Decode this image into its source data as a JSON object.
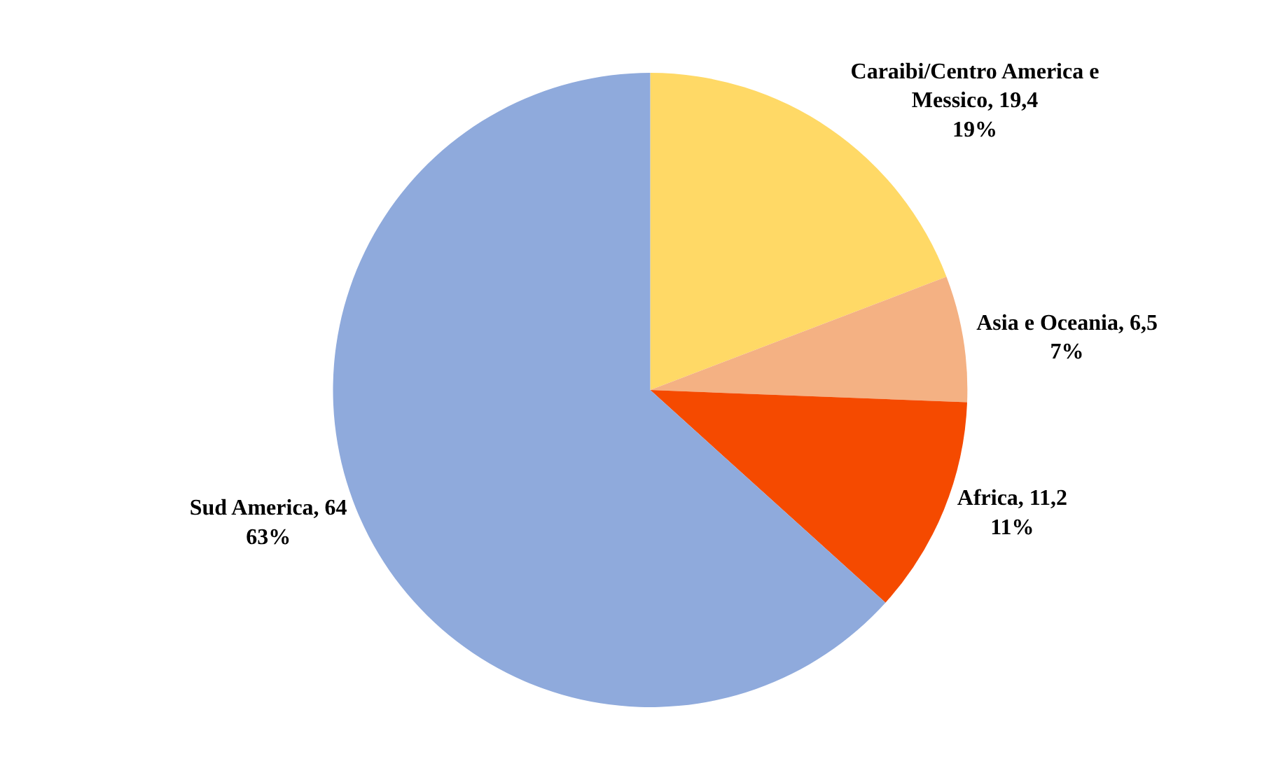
{
  "chart_data": {
    "type": "pie",
    "categories": [
      "Caraibi/Centro America e Messico",
      "Asia e Oceania",
      "Africa",
      "Sud America"
    ],
    "values": [
      19.4,
      6.5,
      11.2,
      64
    ],
    "colors": [
      "#ffd966",
      "#f4b183",
      "#f54a00",
      "#8faadc"
    ],
    "value_labels": [
      "19,4\n19%",
      "6,5\n7%",
      "11,2\n11%",
      "64\n63%"
    ],
    "legend": false
  }
}
